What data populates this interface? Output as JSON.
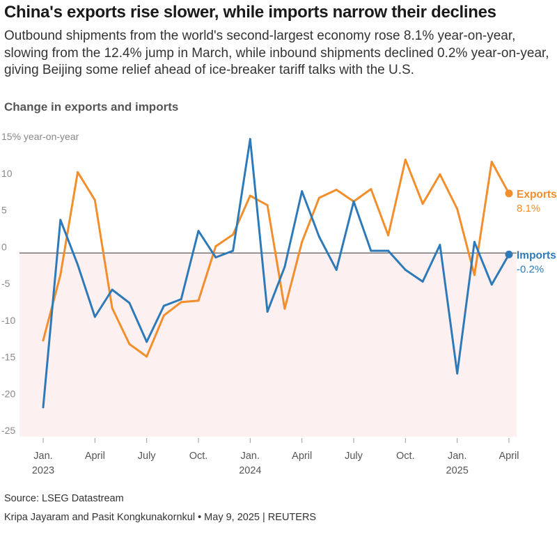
{
  "title": "China's exports rise slower, while imports narrow their declines",
  "subtitle": "Outbound shipments from the world's second-largest economy rose 8.1% year-on-year, slowing from the 12.4% jump in March, while inbound shipments declined 0.2% year-on-year, giving Beijing some relief ahead of ice-breaker tariff talks with the U.S.",
  "chart_heading": "Change in exports and imports",
  "source": "Source: LSEG Datastream",
  "credit": "Kripa Jayaram and Pasit Kongkunakornkul • May 9, 2025 | REUTERS",
  "colors": {
    "exports": "#f28e2b",
    "imports": "#2e7ab8",
    "negative_zone": "#fdf0f0",
    "zero_line": "#333333",
    "axis_text": "#888888"
  },
  "chart_data": {
    "type": "line",
    "title": "Change in exports and imports",
    "ylabel": "year-on-year",
    "ylim": [
      -25,
      15
    ],
    "yticks": [
      15,
      10,
      5,
      0,
      -5,
      -10,
      -15,
      -20,
      -25
    ],
    "ytick_labels": [
      "15% year-on-year",
      "10",
      "5",
      "0",
      "-5",
      "-10",
      "-15",
      "-20",
      "-25"
    ],
    "x": [
      "2023-01",
      "2023-02",
      "2023-03",
      "2023-04",
      "2023-05",
      "2023-06",
      "2023-07",
      "2023-08",
      "2023-09",
      "2023-10",
      "2023-11",
      "2023-12",
      "2024-01",
      "2024-02",
      "2024-03",
      "2024-04",
      "2024-05",
      "2024-06",
      "2024-07",
      "2024-08",
      "2024-09",
      "2024-10",
      "2024-11",
      "2024-12",
      "2025-01",
      "2025-02",
      "2025-03",
      "2025-04"
    ],
    "xticks": [
      {
        "x": "2023-01",
        "label": "Jan.",
        "year": "2023"
      },
      {
        "x": "2023-04",
        "label": "April",
        "year": ""
      },
      {
        "x": "2023-07",
        "label": "July",
        "year": ""
      },
      {
        "x": "2023-10",
        "label": "Oct.",
        "year": ""
      },
      {
        "x": "2024-01",
        "label": "Jan.",
        "year": "2024"
      },
      {
        "x": "2024-04",
        "label": "April",
        "year": ""
      },
      {
        "x": "2024-07",
        "label": "July",
        "year": ""
      },
      {
        "x": "2024-10",
        "label": "Oct.",
        "year": ""
      },
      {
        "x": "2025-01",
        "label": "Jan.",
        "year": "2025"
      },
      {
        "x": "2025-04",
        "label": "April",
        "year": ""
      }
    ],
    "series": [
      {
        "name": "Exports",
        "end_label": "8.1%",
        "values": [
          -11.9,
          -3.0,
          11.0,
          7.2,
          -7.5,
          -12.4,
          -14.1,
          -8.5,
          -6.7,
          -6.5,
          0.9,
          2.5,
          7.8,
          6.5,
          -7.6,
          1.5,
          7.5,
          8.6,
          7.0,
          8.7,
          2.4,
          12.7,
          6.7,
          10.7,
          6.0,
          -3.0,
          12.4,
          8.1
        ]
      },
      {
        "name": "Imports",
        "end_label": "-0.2%",
        "values": [
          -21.0,
          4.5,
          -1.6,
          -8.7,
          -5.0,
          -6.8,
          -12.1,
          -7.2,
          -6.3,
          3.0,
          -0.6,
          0.3,
          15.5,
          -8.0,
          -1.9,
          8.4,
          2.2,
          -2.3,
          7.0,
          0.3,
          0.3,
          -2.3,
          -3.9,
          1.1,
          -16.4,
          1.5,
          -4.3,
          -0.2
        ]
      }
    ],
    "grid": false,
    "legend": "right end labels"
  }
}
